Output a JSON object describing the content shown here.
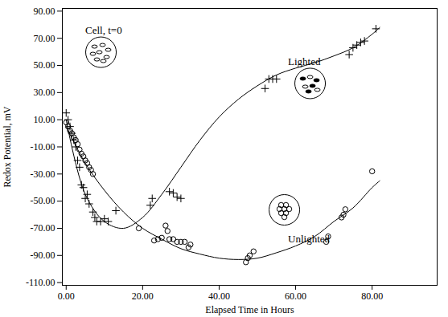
{
  "chart_data": {
    "type": "scatter",
    "x_label": "Elapsed Time in Hours",
    "y_label": "Redox Potential, mV",
    "xlim": [
      -1,
      97
    ],
    "ylim": [
      -112,
      92
    ],
    "xticks": [
      {
        "value": 0,
        "label": "0.00"
      },
      {
        "value": 20,
        "label": "20.00"
      },
      {
        "value": 40,
        "label": "40.00"
      },
      {
        "value": 60,
        "label": "60.00"
      },
      {
        "value": 80,
        "label": "80.00"
      }
    ],
    "yticks": [
      {
        "value": 90,
        "label": "90.00"
      },
      {
        "value": 70,
        "label": "70.00"
      },
      {
        "value": 50,
        "label": "50.00"
      },
      {
        "value": 30,
        "label": "30.00"
      },
      {
        "value": 10,
        "label": "10.00"
      },
      {
        "value": -10,
        "label": "-10.00"
      },
      {
        "value": -30,
        "label": "-30.00"
      },
      {
        "value": -50,
        "label": "-50.00"
      },
      {
        "value": -70,
        "label": "-70.00"
      },
      {
        "value": -90,
        "label": "-90.00"
      },
      {
        "value": -110,
        "label": "-110.00"
      }
    ],
    "grid": false,
    "series": [
      {
        "name": "Lighted",
        "color": "#000000",
        "marker": "plus",
        "x": [
          0,
          0.5,
          1,
          1.5,
          2,
          2.5,
          3,
          3.5,
          4,
          4.5,
          5,
          5.5,
          6,
          7,
          7.5,
          8,
          9,
          10,
          11,
          13,
          22,
          22.5,
          27,
          28,
          29,
          30,
          52,
          53,
          54,
          55,
          74,
          75,
          76,
          77,
          78,
          81
        ],
        "values": [
          15,
          10,
          5,
          0,
          -5,
          -10,
          -20,
          -25,
          -38,
          -40,
          -48,
          -45,
          -52,
          -58,
          -62,
          -65,
          -65,
          -63,
          -65,
          -57,
          -53,
          -48,
          -43,
          -44,
          -47,
          -48,
          33,
          40,
          40,
          40,
          58,
          63,
          65,
          67,
          68,
          77
        ],
        "fit": {
          "x": [
            0,
            5,
            10,
            15,
            20,
            25,
            30,
            35,
            40,
            45,
            50,
            55,
            60,
            65,
            70,
            75,
            80,
            82
          ],
          "values": [
            10,
            -45,
            -65,
            -70,
            -62,
            -45,
            -25,
            -5,
            12,
            25,
            35,
            43,
            48,
            52,
            57,
            63,
            73,
            78
          ]
        }
      },
      {
        "name": "Unlighted",
        "color": "#000000",
        "marker": "circle",
        "x": [
          0,
          0.5,
          1,
          1.5,
          2,
          2.5,
          3,
          3.5,
          4,
          4.5,
          5,
          5.5,
          6,
          6.5,
          7,
          19,
          23,
          24,
          25,
          26,
          26.5,
          27,
          28,
          29,
          30,
          31,
          32,
          32.5,
          47,
          47.5,
          48,
          49,
          68,
          68.5,
          72,
          72.5,
          73,
          80
        ],
        "values": [
          8,
          5,
          2,
          0,
          -3,
          -5,
          -8,
          -12,
          -15,
          -17,
          -20,
          -22,
          -25,
          -27,
          -30,
          -70,
          -79,
          -78,
          -77,
          -68,
          -72,
          -78,
          -78,
          -80,
          -80,
          -80,
          -84,
          -82,
          -95,
          -92,
          -90,
          -87,
          -80,
          -76,
          -62,
          -60,
          -56,
          -28
        ],
        "fit": {
          "x": [
            0,
            5,
            10,
            15,
            20,
            25,
            30,
            35,
            40,
            45,
            50,
            55,
            60,
            65,
            70,
            75,
            80,
            82
          ],
          "values": [
            5,
            -22,
            -42,
            -58,
            -70,
            -78,
            -85,
            -89,
            -92,
            -93,
            -92,
            -88,
            -83,
            -76,
            -65,
            -55,
            -40,
            -35
          ]
        }
      }
    ],
    "annotations": [
      {
        "text": "Cell, t=0",
        "x": 5,
        "y": 76
      },
      {
        "text": "Lighted",
        "x": 58,
        "y": 53
      },
      {
        "text": "Unlighted",
        "x": 58,
        "y": -78
      }
    ]
  }
}
